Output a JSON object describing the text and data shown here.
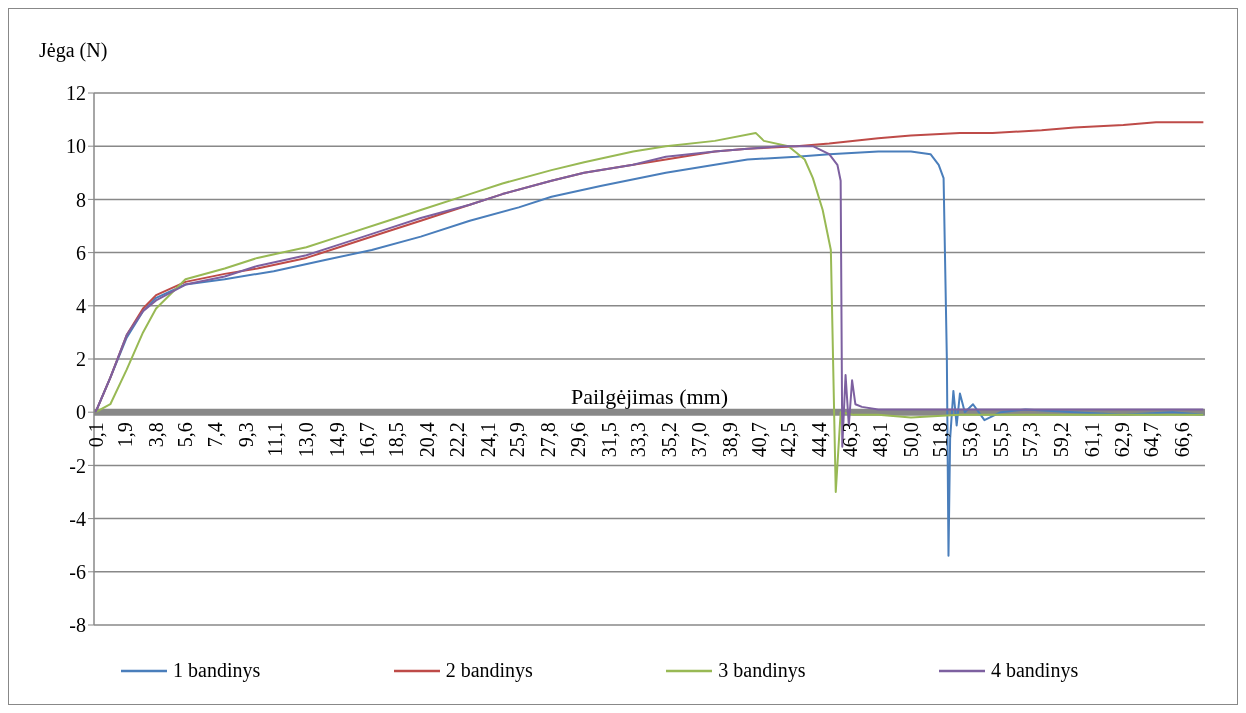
{
  "chart_data": {
    "type": "line",
    "xlabel": "Pailgėjimas (mm)",
    "ylabel": "Jėga (N)",
    "xlim": [
      0,
      68
    ],
    "ylim": [
      -8,
      12
    ],
    "xticks": [
      {
        "value": 0.1,
        "label": "0,1"
      },
      {
        "value": 1.9,
        "label": "1,9"
      },
      {
        "value": 3.8,
        "label": "3,8"
      },
      {
        "value": 5.6,
        "label": "5,6"
      },
      {
        "value": 7.4,
        "label": "7,4"
      },
      {
        "value": 9.3,
        "label": "9,3"
      },
      {
        "value": 11.1,
        "label": "11,1"
      },
      {
        "value": 13.0,
        "label": "13,0"
      },
      {
        "value": 14.9,
        "label": "14,9"
      },
      {
        "value": 16.7,
        "label": "16,7"
      },
      {
        "value": 18.5,
        "label": "18,5"
      },
      {
        "value": 20.4,
        "label": "20,4"
      },
      {
        "value": 22.2,
        "label": "22,2"
      },
      {
        "value": 24.1,
        "label": "24,1"
      },
      {
        "value": 25.9,
        "label": "25,9"
      },
      {
        "value": 27.8,
        "label": "27,8"
      },
      {
        "value": 29.6,
        "label": "29,6"
      },
      {
        "value": 31.5,
        "label": "31,5"
      },
      {
        "value": 33.3,
        "label": "33,3"
      },
      {
        "value": 35.2,
        "label": "35,2"
      },
      {
        "value": 37.0,
        "label": "37,0"
      },
      {
        "value": 38.9,
        "label": "38,9"
      },
      {
        "value": 40.7,
        "label": "40,7"
      },
      {
        "value": 42.5,
        "label": "42,5"
      },
      {
        "value": 44.4,
        "label": "44,4"
      },
      {
        "value": 46.3,
        "label": "46,3"
      },
      {
        "value": 48.1,
        "label": "48,1"
      },
      {
        "value": 50.0,
        "label": "50,0"
      },
      {
        "value": 51.8,
        "label": "51,8"
      },
      {
        "value": 53.6,
        "label": "53,6"
      },
      {
        "value": 55.5,
        "label": "55,5"
      },
      {
        "value": 57.3,
        "label": "57,3"
      },
      {
        "value": 59.2,
        "label": "59,2"
      },
      {
        "value": 61.1,
        "label": "61,1"
      },
      {
        "value": 62.9,
        "label": "62,9"
      },
      {
        "value": 64.7,
        "label": "64,7"
      },
      {
        "value": 66.6,
        "label": "66,6"
      }
    ],
    "yticks": [
      -8,
      -6,
      -4,
      -2,
      0,
      2,
      4,
      6,
      8,
      10,
      12
    ],
    "grid": "y",
    "legend": "bottom",
    "marker": "none",
    "line_style": "solid",
    "series": [
      {
        "name": "1 bandinys",
        "color": "#4a7ebb",
        "x": [
          0.1,
          1,
          2,
          3,
          3.8,
          5.6,
          8,
          11,
          14,
          17,
          20,
          23,
          26,
          28,
          31,
          35,
          38,
          40,
          43,
          45,
          48,
          50,
          51.2,
          51.7,
          52.0,
          52.2,
          52.3,
          52.4,
          52.6,
          52.8,
          53.0,
          53.3,
          53.8,
          54.5,
          55.5,
          57,
          60,
          63,
          66,
          67.9
        ],
        "values": [
          0,
          1.3,
          2.8,
          3.8,
          4.3,
          4.8,
          5.0,
          5.3,
          5.7,
          6.1,
          6.6,
          7.2,
          7.7,
          8.1,
          8.5,
          9.0,
          9.3,
          9.5,
          9.6,
          9.7,
          9.8,
          9.8,
          9.7,
          9.3,
          8.8,
          2,
          -5.4,
          -1,
          0.8,
          -0.5,
          0.7,
          0,
          0.3,
          -0.3,
          0,
          0.1,
          0,
          -0.1,
          0,
          -0.1
        ]
      },
      {
        "name": "2 bandinys",
        "color": "#be4b48",
        "x": [
          0.1,
          1,
          2,
          3,
          3.8,
          5.6,
          8,
          10,
          13,
          15,
          18,
          20,
          23,
          25,
          28,
          30,
          33,
          35,
          38,
          40,
          43,
          45,
          48,
          50,
          53,
          55,
          58,
          60,
          63,
          65,
          67.9
        ],
        "values": [
          0,
          1.3,
          2.9,
          3.9,
          4.4,
          4.9,
          5.2,
          5.4,
          5.8,
          6.2,
          6.8,
          7.2,
          7.8,
          8.2,
          8.7,
          9.0,
          9.3,
          9.5,
          9.8,
          9.9,
          10.0,
          10.1,
          10.3,
          10.4,
          10.5,
          10.5,
          10.6,
          10.7,
          10.8,
          10.9,
          10.9
        ]
      },
      {
        "name": "3 bandinys",
        "color": "#98b954",
        "x": [
          0.1,
          1,
          2,
          3,
          3.8,
          5.6,
          8,
          10,
          13,
          15,
          18,
          20,
          23,
          25,
          28,
          30,
          33,
          35,
          38,
          40.5,
          41,
          42.5,
          43.5,
          44,
          44.6,
          45.1,
          45.3,
          45.4,
          45.7,
          46.5,
          48,
          50,
          53,
          56,
          60,
          64,
          67.9
        ],
        "values": [
          0,
          0.3,
          1.6,
          3.0,
          3.9,
          5.0,
          5.4,
          5.8,
          6.2,
          6.6,
          7.2,
          7.6,
          8.2,
          8.6,
          9.1,
          9.4,
          9.8,
          10.0,
          10.2,
          10.5,
          10.2,
          10.0,
          9.5,
          8.8,
          7.6,
          6.1,
          0,
          -3.0,
          0,
          -0.1,
          -0.1,
          -0.2,
          -0.1,
          -0.1,
          -0.1,
          -0.1,
          -0.1
        ]
      },
      {
        "name": "4 bandinys",
        "color": "#7d60a0",
        "x": [
          0.1,
          1,
          2,
          3,
          3.8,
          5.6,
          8,
          10,
          13,
          15,
          18,
          20,
          23,
          25,
          28,
          30,
          33,
          35,
          38,
          40,
          42,
          44,
          45,
          45.5,
          45.7,
          45.8,
          46.0,
          46.2,
          46.4,
          46.6,
          47,
          48,
          50,
          53,
          56,
          60,
          64,
          67.9
        ],
        "values": [
          0,
          1.3,
          2.9,
          3.8,
          4.2,
          4.8,
          5.1,
          5.5,
          5.9,
          6.3,
          6.9,
          7.3,
          7.8,
          8.2,
          8.7,
          9.0,
          9.3,
          9.6,
          9.8,
          9.9,
          10.0,
          10.0,
          9.7,
          9.3,
          8.7,
          -1.3,
          1.4,
          -0.5,
          1.2,
          0.3,
          0.2,
          0.1,
          0.1,
          0.1,
          0.1,
          0.1,
          0.1,
          0.1
        ]
      }
    ]
  }
}
